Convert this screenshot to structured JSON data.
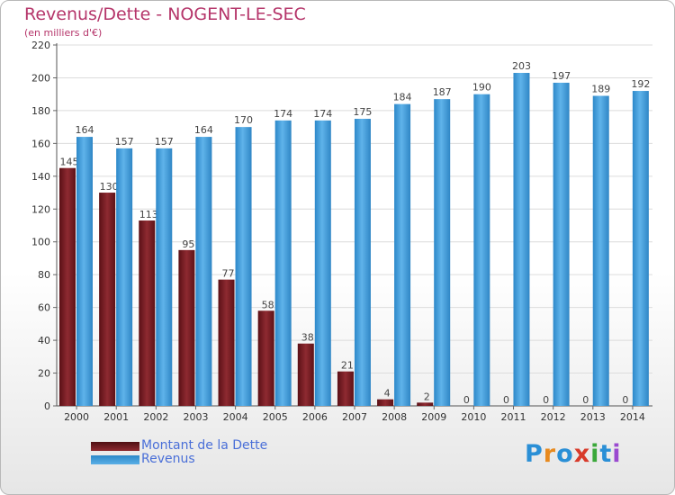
{
  "title": "Revenus/Dette - NOGENT-LE-SEC",
  "subtitle": "(en milliers d'€)",
  "logo": {
    "text": "Proxiti",
    "letters": [
      "P",
      "r",
      "o",
      "x",
      "i",
      "t",
      "i"
    ],
    "colors": [
      "#2a8fd6",
      "#e88a1e",
      "#2a8fd6",
      "#d83a2a",
      "#3aa83a",
      "#2a8fd6",
      "#9a4ad0"
    ]
  },
  "colors": {
    "debt": "#7a1f25",
    "revenue": "#3d9be0",
    "accent": "#b5356a",
    "legend_text": "#4a6fd8"
  },
  "chart_data": {
    "type": "bar",
    "title": "Revenus/Dette - NOGENT-LE-SEC",
    "ylabel": "(en milliers d'€)",
    "xlabel": "",
    "ylim": [
      0,
      220
    ],
    "yticks": [
      0,
      20,
      40,
      60,
      80,
      100,
      120,
      140,
      160,
      180,
      200,
      220
    ],
    "grid": true,
    "legend_position": "bottom-left",
    "categories": [
      "2000",
      "2001",
      "2002",
      "2003",
      "2004",
      "2005",
      "2006",
      "2007",
      "2008",
      "2009",
      "2010",
      "2011",
      "2012",
      "2013",
      "2014"
    ],
    "series": [
      {
        "name": "Montant de la Dette",
        "values": [
          145,
          130,
          113,
          95,
          77,
          58,
          38,
          21,
          4,
          2,
          0,
          0,
          0,
          0,
          0
        ]
      },
      {
        "name": "Revenus",
        "values": [
          164,
          157,
          157,
          164,
          170,
          174,
          174,
          175,
          184,
          187,
          190,
          203,
          197,
          189,
          192
        ]
      }
    ]
  }
}
